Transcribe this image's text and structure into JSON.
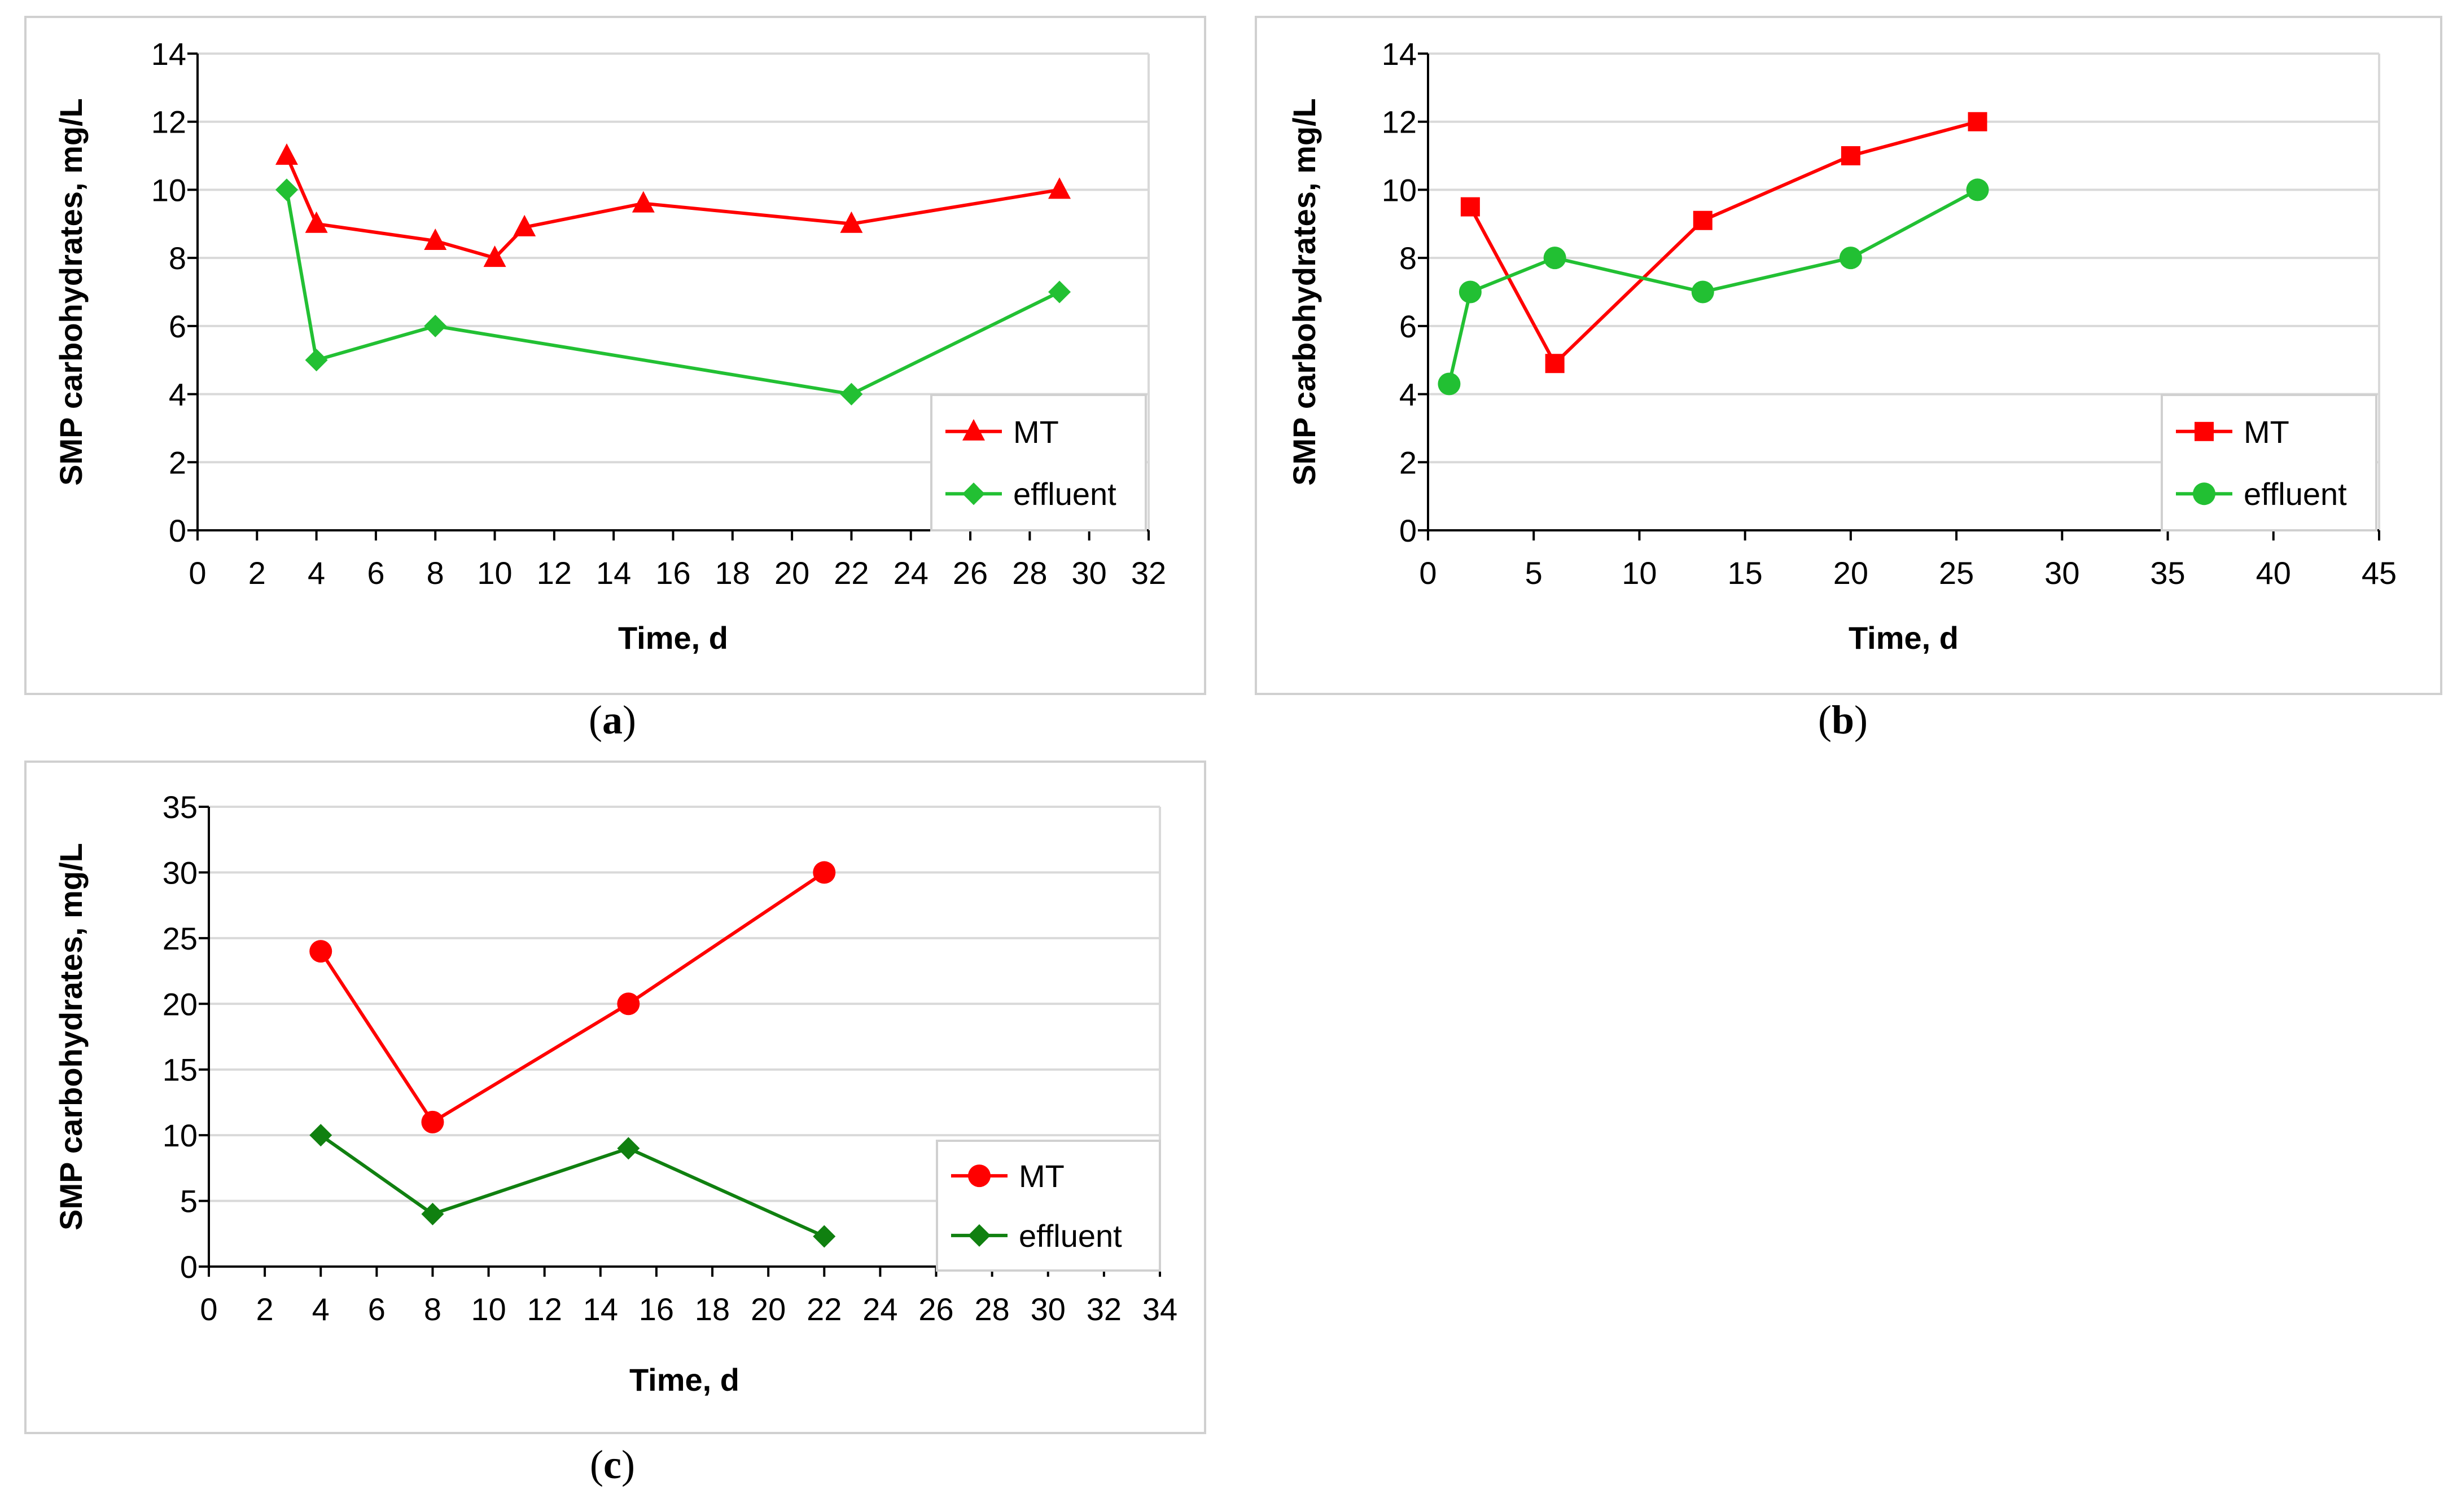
{
  "chart_data": [
    {
      "type": "line",
      "caption": "a",
      "xlabel": "Time, d",
      "ylabel": "SMP carbohydrates, mg/L",
      "xlim": [
        0,
        32
      ],
      "xstep": 2,
      "ylim": [
        0,
        14
      ],
      "ystep": 2,
      "grid": true,
      "legend": "bottom-right",
      "series": [
        {
          "name": "MT",
          "color": "#ff0000",
          "marker": "triangle",
          "x": [
            3,
            4,
            8,
            10,
            11,
            15,
            22,
            29
          ],
          "y": [
            11,
            9,
            8.5,
            8,
            8.9,
            9.6,
            9,
            10
          ]
        },
        {
          "name": "effluent",
          "color": "#22c033",
          "marker": "diamond",
          "x": [
            3,
            4,
            8,
            22,
            29
          ],
          "y": [
            10,
            5,
            6,
            4,
            7
          ]
        }
      ]
    },
    {
      "type": "line",
      "caption": "b",
      "xlabel": "Time, d",
      "ylabel": "SMP carbohydrates, mg/L",
      "xlim": [
        0,
        45
      ],
      "xstep": 5,
      "ylim": [
        0,
        14
      ],
      "ystep": 2,
      "grid": true,
      "legend": "bottom-right",
      "series": [
        {
          "name": "MT",
          "color": "#ff0000",
          "marker": "square",
          "x": [
            2,
            6,
            13,
            20,
            26
          ],
          "y": [
            9.5,
            4.9,
            9.1,
            11,
            12
          ]
        },
        {
          "name": "effluent",
          "color": "#22c033",
          "marker": "circle",
          "x": [
            1,
            2,
            6,
            13,
            20,
            26
          ],
          "y": [
            4.3,
            7,
            8,
            7,
            8,
            10
          ]
        }
      ]
    },
    {
      "type": "line",
      "caption": "c",
      "xlabel": "Time, d",
      "ylabel": "SMP carbohydrates, mg/L",
      "xlim": [
        0,
        34
      ],
      "xstep": 2,
      "ylim": [
        0,
        35
      ],
      "ystep": 5,
      "grid": true,
      "legend": "bottom-right",
      "series": [
        {
          "name": "MT",
          "color": "#ff0000",
          "marker": "circle",
          "x": [
            4,
            8,
            15,
            22
          ],
          "y": [
            24,
            11,
            20,
            30
          ]
        },
        {
          "name": "effluent",
          "color": "#108010",
          "marker": "diamond",
          "x": [
            4,
            8,
            15,
            22
          ],
          "y": [
            10,
            4,
            9,
            2.3
          ]
        }
      ]
    }
  ]
}
